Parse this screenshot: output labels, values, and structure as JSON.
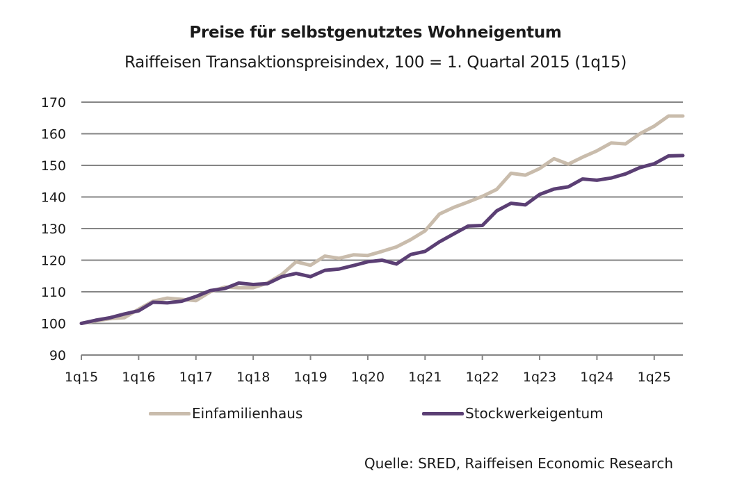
{
  "chart_data": {
    "type": "line",
    "title": "Preise für selbstgenutztes Wohneigentum",
    "subtitle": "Raiffeisen Transaktionspreisindex, 100 = 1. Quartal 2015 (1q15)",
    "xlabel": "",
    "ylabel": "",
    "ylim": [
      90,
      170
    ],
    "yticks": [
      "90",
      "100",
      "110",
      "120",
      "130",
      "140",
      "150",
      "160",
      "170"
    ],
    "xtick_labels": [
      "1q15",
      "1q16",
      "1q17",
      "1q18",
      "1q19",
      "1q20",
      "1q21",
      "1q22",
      "1q23",
      "1q24",
      "1q25"
    ],
    "x_start": "1q15",
    "x_end": "3q25",
    "n_quarters": 43,
    "grid": true,
    "legend_position": "bottom",
    "series": [
      {
        "name": "Einfamilienhaus",
        "color": "#c9bcac",
        "values": [
          100,
          100.8,
          101.5,
          101.8,
          104.5,
          107,
          108,
          107.6,
          107.2,
          110,
          111.5,
          111.3,
          111.3,
          112.8,
          115.5,
          119.5,
          118.4,
          121.3,
          120.6,
          121.7,
          121.5,
          122.8,
          124.2,
          126.5,
          129.3,
          134.6,
          136.7,
          138.4,
          140.2,
          142.4,
          147.5,
          146.9,
          149,
          152.1,
          150.4,
          152.6,
          154.6,
          157.1,
          156.8,
          160,
          162.4,
          165.6,
          165.6
        ]
      },
      {
        "name": "Stockwerkeigentum",
        "color": "#5b3f74",
        "values": [
          100,
          101,
          101.8,
          103,
          104,
          106.7,
          106.5,
          107,
          108.5,
          110.4,
          111,
          112.8,
          112.3,
          112.6,
          114.8,
          115.8,
          114.8,
          116.8,
          117.2,
          118.3,
          119.5,
          120,
          118.8,
          121.8,
          122.8,
          125.8,
          128.3,
          130.8,
          131,
          135.6,
          138,
          137.5,
          140.8,
          142.5,
          143.2,
          145.7,
          145.3,
          146,
          147.3,
          149.3,
          150.5,
          153,
          153.1
        ]
      }
    ]
  },
  "source": "Quelle: SRED, Raiffeisen Economic Research"
}
